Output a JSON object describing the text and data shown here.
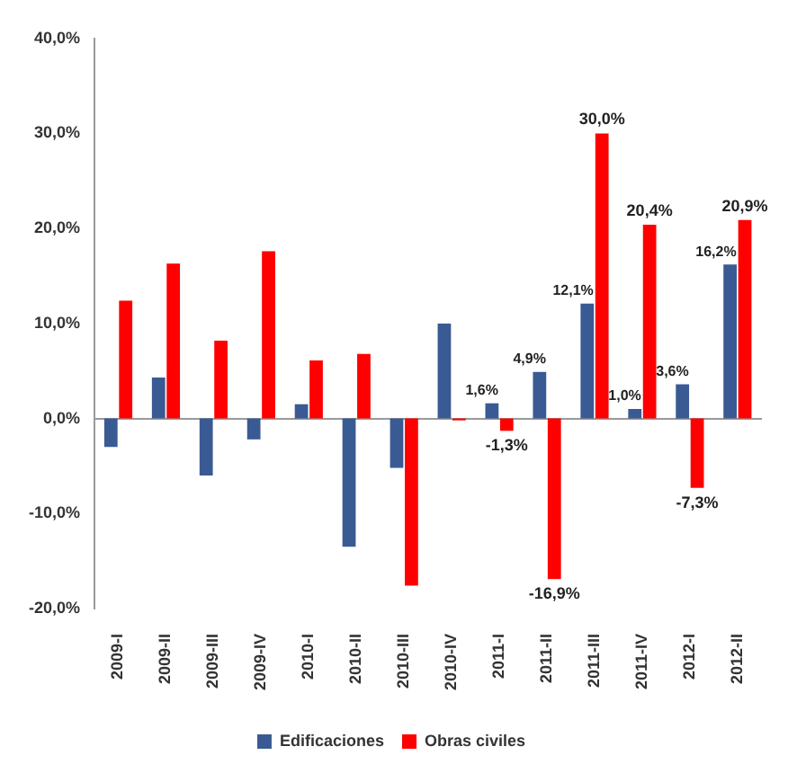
{
  "chart_data": {
    "type": "bar",
    "categories": [
      "2009-I",
      "2009-II",
      "2009-III",
      "2009-IV",
      "2010-I",
      "2010-II",
      "2010-III",
      "2010-IV",
      "2011-I",
      "2011-II",
      "2011-III",
      "2011-IV",
      "2012-I",
      "2012-II"
    ],
    "series": [
      {
        "name": "Edificaciones",
        "color": "#3a5a94",
        "values": [
          -3.0,
          4.3,
          -6.0,
          -2.2,
          1.5,
          -13.5,
          -5.2,
          10.0,
          1.6,
          4.9,
          12.1,
          1.0,
          3.6,
          16.2
        ],
        "value_labels": [
          null,
          null,
          null,
          null,
          null,
          null,
          null,
          null,
          "1,6%",
          "4,9%",
          "12,1%",
          "1,0%",
          "3,6%",
          "16,2%"
        ]
      },
      {
        "name": "Obras civiles",
        "color": "#ff0000",
        "values": [
          12.4,
          16.3,
          8.2,
          17.6,
          6.1,
          6.8,
          -17.6,
          -0.2,
          -1.3,
          -16.9,
          30.0,
          20.4,
          -7.3,
          20.9
        ],
        "value_labels": [
          null,
          null,
          null,
          null,
          null,
          null,
          null,
          null,
          "-1,3%",
          "-16,9%",
          "30,0%",
          "20,4%",
          "-7,3%",
          "20,9%"
        ]
      }
    ],
    "ylim": [
      -20,
      40
    ],
    "yticks": [
      {
        "value": -20,
        "label": "-20,0%"
      },
      {
        "value": -10,
        "label": "-10,0%"
      },
      {
        "value": 0,
        "label": "0,0%"
      },
      {
        "value": 10,
        "label": "10,0%"
      },
      {
        "value": 20,
        "label": "20,0%"
      },
      {
        "value": 30,
        "label": "30,0%"
      },
      {
        "value": 40,
        "label": "40,0%"
      }
    ],
    "legend": "bottom"
  }
}
